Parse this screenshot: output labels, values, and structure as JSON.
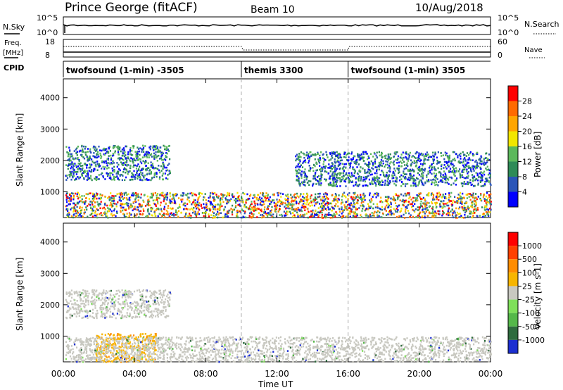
{
  "header": {
    "station": "Prince George (fitACF)",
    "beam": "Beam 10",
    "date": "10/Aug/2018"
  },
  "top_panels": {
    "nsky_label": "N.Sky",
    "nsky_ticks": [
      "10^5",
      "10^0"
    ],
    "nsearch_label": "N.Search",
    "nsearch_ticks": [
      "10^5",
      "10^0"
    ],
    "freq_label": "Freq.",
    "freq_unit": "[MHz]",
    "freq_ticks": [
      "18",
      "8"
    ],
    "nave_label": "Nave",
    "nave_ticks": [
      "60",
      "0"
    ],
    "cpid_label": "CPID",
    "cpid_segments": [
      {
        "label": "twofsound (1-min) -3505",
        "start_h": 0,
        "end_h": 10
      },
      {
        "label": "themis 3300",
        "start_h": 10,
        "end_h": 16
      },
      {
        "label": "twofsound (1-min) 3505",
        "start_h": 16,
        "end_h": 24
      }
    ]
  },
  "axes": {
    "ylabel": "Slant Range [km]",
    "y_ticks": [
      "4000",
      "3000",
      "2000",
      "1000"
    ],
    "x_ticks": [
      "00:00",
      "04:00",
      "08:00",
      "12:00",
      "16:00",
      "20:00",
      "00:00"
    ],
    "xlabel": "Time UT"
  },
  "power_scale": {
    "label": "Power [dB]",
    "ticks": [
      "28",
      "24",
      "20",
      "16",
      "12",
      "8",
      "4"
    ],
    "colors": [
      "#0000ff",
      "#2a55b8",
      "#2e8b57",
      "#5cb85c",
      "#f2e600",
      "#ffa500",
      "#ff6a00",
      "#ff0000"
    ]
  },
  "velocity_scale": {
    "label": "Velocity [m s-1]",
    "ticks": [
      "1000",
      "500",
      "100",
      "25",
      "-25",
      "-100",
      "-500",
      "-1000"
    ],
    "colors": [
      "#1c2fd1",
      "#2e6b3e",
      "#55b84a",
      "#7fe05a",
      "#c8c8c0",
      "#f7b500",
      "#ff8c00",
      "#ff4000",
      "#ff0000"
    ]
  },
  "chart_data": {
    "type": "heatmap",
    "x_range_hours": [
      0,
      24
    ],
    "y_range_km": [
      180,
      4600
    ],
    "panels": [
      {
        "name": "Power",
        "scatter_regions": [
          {
            "t_start": 0.1,
            "t_end": 6.0,
            "r_low": 1400,
            "r_high": 2500,
            "level": "mixed"
          },
          {
            "t_start": 0.1,
            "t_end": 24,
            "r_low": 200,
            "r_high": 1000,
            "level": "high"
          },
          {
            "t_start": 13.0,
            "t_end": 24,
            "r_low": 1200,
            "r_high": 2300,
            "level": "mixed"
          }
        ]
      },
      {
        "name": "Velocity",
        "scatter_regions": [
          {
            "t_start": 0.1,
            "t_end": 6.0,
            "r_low": 1600,
            "r_high": 2500,
            "level": "ground"
          },
          {
            "t_start": 1.8,
            "t_end": 5.2,
            "r_low": 200,
            "r_high": 1100,
            "level": "negative"
          },
          {
            "t_start": 0.1,
            "t_end": 24,
            "r_low": 200,
            "r_high": 1000,
            "level": "ground"
          }
        ]
      }
    ]
  }
}
